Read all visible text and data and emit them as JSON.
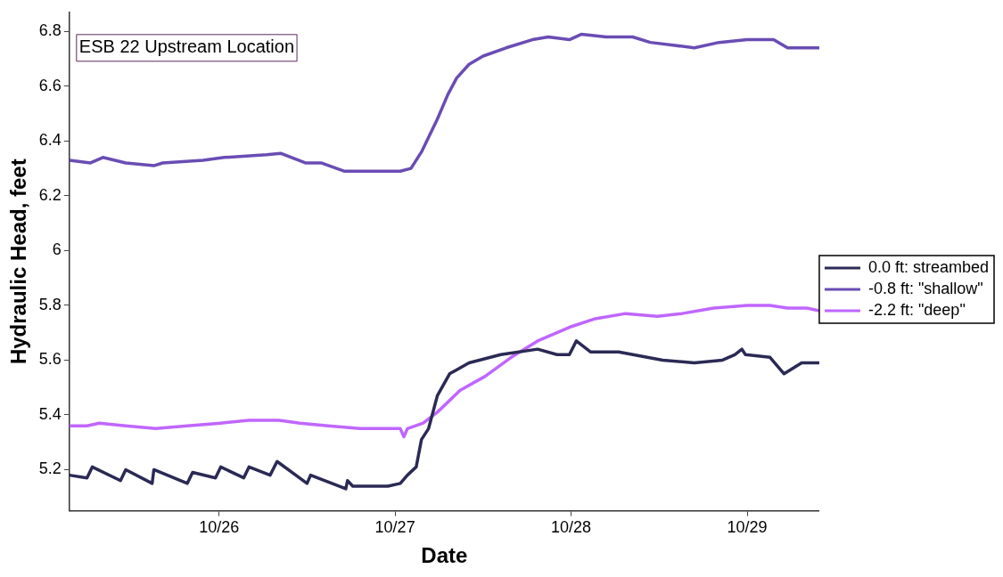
{
  "chart_data": {
    "type": "line",
    "xlabel": "Date",
    "ylabel": "Hydraulic Head, feet",
    "annotations": [
      "ESB 22 Upstream Location"
    ],
    "xlim": [
      "--10-25T03:36",
      "--10-29T09:50"
    ],
    "ylim": [
      5.05,
      6.87
    ],
    "xticks": [
      {
        "value": "--10-26",
        "label": "10/26"
      },
      {
        "value": "--10-27",
        "label": "10/27"
      },
      {
        "value": "--10-28",
        "label": "10/28"
      },
      {
        "value": "--10-29",
        "label": "10/29"
      }
    ],
    "yticks": [
      5.2,
      5.4,
      5.6,
      5.8,
      6,
      6.2,
      6.4,
      6.6,
      6.8
    ],
    "grid": false,
    "legend": "right",
    "marker": "none",
    "line_style": "solid",
    "series": [
      {
        "name": "0.0 ft: streambed",
        "color": "#2b2a55",
        "x": [
          "--10-25T03:36",
          "--10-25T06:00",
          "--10-25T06:43",
          "--10-25T10:34",
          "--10-25T11:17",
          "--10-25T14:53",
          "--10-25T15:07",
          "--10-25T19:41",
          "--10-25T20:24",
          "--10-25T23:31",
          "--10-26T00:14",
          "--10-26T03:22",
          "--10-26T04:05",
          "--10-26T06:58",
          "--10-26T07:55",
          "--10-26T12:00",
          "--10-26T12:29",
          "--10-26T17:17",
          "--10-26T17:31",
          "--10-26T18:14",
          "--10-26T22:05",
          "--10-26T23:02",
          "--10-27T00:43",
          "--10-27T01:41",
          "--10-27T02:53",
          "--10-27T03:36",
          "--10-27T04:34",
          "--10-27T05:46",
          "--10-27T07:26",
          "--10-27T10:05",
          "--10-27T14:24",
          "--10-27T19:26",
          "--10-27T22:05",
          "--10-27T23:46",
          "--10-28T00:43",
          "--10-28T02:38",
          "--10-28T06:29",
          "--10-28T12:29",
          "--10-28T16:48",
          "--10-28T20:38",
          "--10-28T22:19",
          "--10-28T23:17",
          "--10-28T23:46",
          "--10-29T03:07",
          "--10-29T05:02",
          "--10-29T07:26",
          "--10-29T09:50"
        ],
        "values": [
          5.18,
          5.17,
          5.21,
          5.16,
          5.2,
          5.15,
          5.2,
          5.15,
          5.19,
          5.17,
          5.21,
          5.17,
          5.21,
          5.18,
          5.23,
          5.15,
          5.18,
          5.13,
          5.16,
          5.14,
          5.14,
          5.14,
          5.15,
          5.18,
          5.21,
          5.31,
          5.35,
          5.47,
          5.55,
          5.59,
          5.62,
          5.64,
          5.62,
          5.62,
          5.67,
          5.63,
          5.63,
          5.6,
          5.59,
          5.6,
          5.62,
          5.64,
          5.62,
          5.61,
          5.55,
          5.59,
          5.59
        ]
      },
      {
        "name": "-0.8 ft: \"shallow\"",
        "color": "#6a4cb4",
        "x": [
          "--10-25T03:36",
          "--10-25T06:29",
          "--10-25T08:10",
          "--10-25T11:17",
          "--10-25T15:07",
          "--10-25T16:19",
          "--10-25T21:50",
          "--10-26T00:43",
          "--10-26T06:29",
          "--10-26T08:24",
          "--10-26T11:46",
          "--10-26T13:55",
          "--10-26T17:02",
          "--10-26T21:22",
          "--10-27T00:43",
          "--10-27T02:10",
          "--10-27T03:36",
          "--10-27T05:46",
          "--10-27T07:12",
          "--10-27T08:24",
          "--10-27T10:05",
          "--10-27T12:00",
          "--10-27T15:07",
          "--10-27T18:43",
          "--10-27T20:53",
          "--10-27T23:46",
          "--10-28T01:26",
          "--10-28T04:48",
          "--10-28T08:24",
          "--10-28T10:48",
          "--10-28T13:55",
          "--10-28T16:48",
          "--10-28T20:10",
          "--10-29T00:00",
          "--10-29T03:36",
          "--10-29T05:31",
          "--10-29T08:10",
          "--10-29T09:50"
        ],
        "values": [
          6.33,
          6.32,
          6.34,
          6.32,
          6.31,
          6.32,
          6.33,
          6.34,
          6.35,
          6.355,
          6.32,
          6.32,
          6.29,
          6.29,
          6.29,
          6.3,
          6.36,
          6.48,
          6.57,
          6.63,
          6.68,
          6.71,
          6.74,
          6.77,
          6.78,
          6.77,
          6.79,
          6.78,
          6.78,
          6.76,
          6.75,
          6.74,
          6.76,
          6.77,
          6.77,
          6.74,
          6.74,
          6.74
        ]
      },
      {
        "name": "-2.2 ft: \"deep\"",
        "color": "#c066ff",
        "x": [
          "--10-25T03:36",
          "--10-25T06:00",
          "--10-25T07:41",
          "--10-25T11:17",
          "--10-25T15:22",
          "--10-25T19:41",
          "--10-26T00:14",
          "--10-26T04:05",
          "--10-26T08:10",
          "--10-26T11:02",
          "--10-26T14:53",
          "--10-26T19:12",
          "--10-26T23:31",
          "--10-27T00:43",
          "--10-27T01:12",
          "--10-27T01:41",
          "--10-27T03:50",
          "--10-27T05:46",
          "--10-27T08:53",
          "--10-27T12:14",
          "--10-27T15:50",
          "--10-27T19:26",
          "--10-27T23:46",
          "--10-28T03:07",
          "--10-28T07:26",
          "--10-28T11:46",
          "--10-28T15:07",
          "--10-28T19:26",
          "--10-29T00:00",
          "--10-29T03:07",
          "--10-29T05:31",
          "--10-29T08:10",
          "--10-29T09:50"
        ],
        "values": [
          5.36,
          5.36,
          5.37,
          5.36,
          5.35,
          5.36,
          5.37,
          5.38,
          5.38,
          5.37,
          5.36,
          5.35,
          5.35,
          5.35,
          5.32,
          5.35,
          5.37,
          5.41,
          5.49,
          5.54,
          5.61,
          5.67,
          5.72,
          5.75,
          5.77,
          5.76,
          5.77,
          5.79,
          5.8,
          5.8,
          5.79,
          5.79,
          5.78
        ]
      }
    ]
  }
}
